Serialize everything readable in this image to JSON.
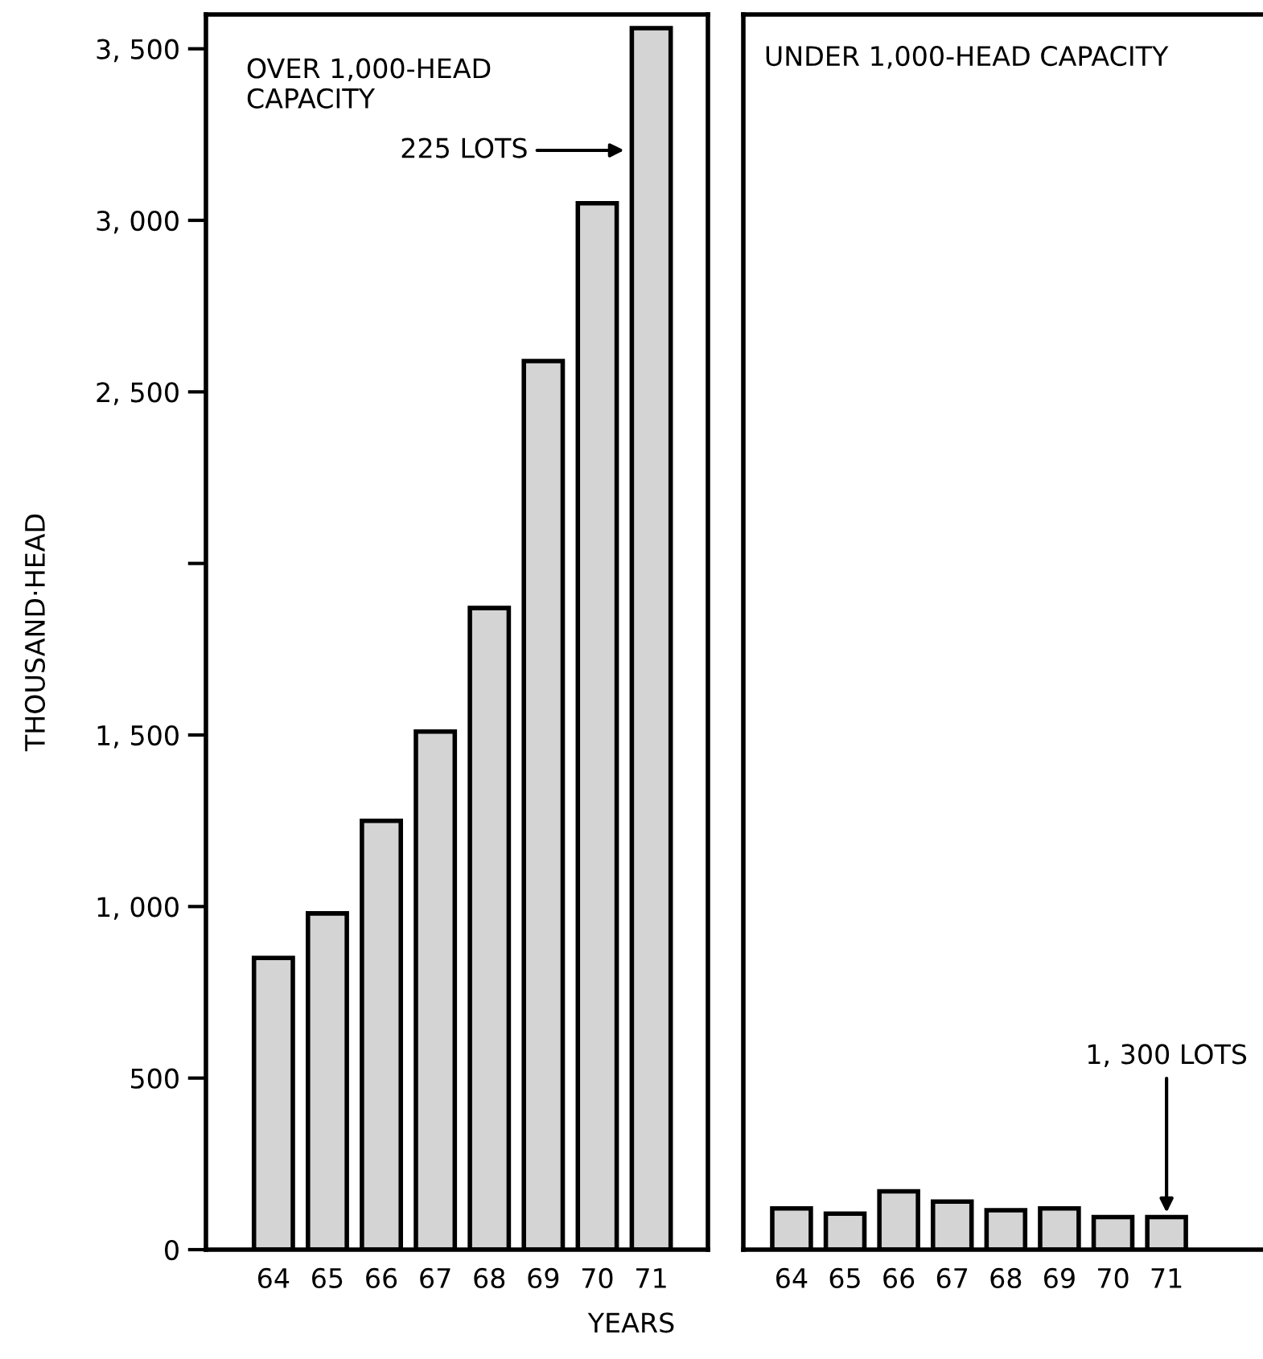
{
  "chart_data": [
    {
      "type": "bar",
      "title": "OVER 1,000-HEAD\nCAPACITY",
      "xlabel": "YEARS",
      "ylabel": "THOUSAND·HEAD",
      "categories": [
        "64",
        "65",
        "66",
        "67",
        "68",
        "69",
        "70",
        "71"
      ],
      "values": [
        850,
        980,
        1250,
        1510,
        1870,
        2590,
        3050,
        3560
      ],
      "color": "#d4d4d4",
      "ylim": [
        0,
        3600
      ],
      "yticks": [
        0,
        {
          "value": 500,
          "label": "500"
        },
        {
          "value": 1000,
          "label": "1, 000"
        },
        {
          "value": 1500,
          "label": "1, 500"
        },
        {
          "value": 2000,
          "label": null
        },
        {
          "value": 2500,
          "label": "2, 500"
        },
        {
          "value": 3000,
          "label": "3, 000"
        },
        {
          "value": 3500,
          "label": "3, 500"
        }
      ],
      "annotations": [
        "225 LOTS"
      ],
      "grid": false,
      "legend": false
    },
    {
      "type": "bar",
      "title": "UNDER 1,000-HEAD CAPACITY",
      "categories": [
        "64",
        "65",
        "66",
        "67",
        "68",
        "69",
        "70",
        "71"
      ],
      "values": [
        120,
        105,
        170,
        140,
        115,
        120,
        95,
        95
      ],
      "color": "#d4d4d4",
      "ylim": [
        0,
        3600
      ],
      "tick_labels": "x",
      "annotations": [
        {
          "text": "1, 300 LOTS",
          "x": "71",
          "y": 95
        }
      ],
      "grid": false,
      "legend": false
    }
  ]
}
